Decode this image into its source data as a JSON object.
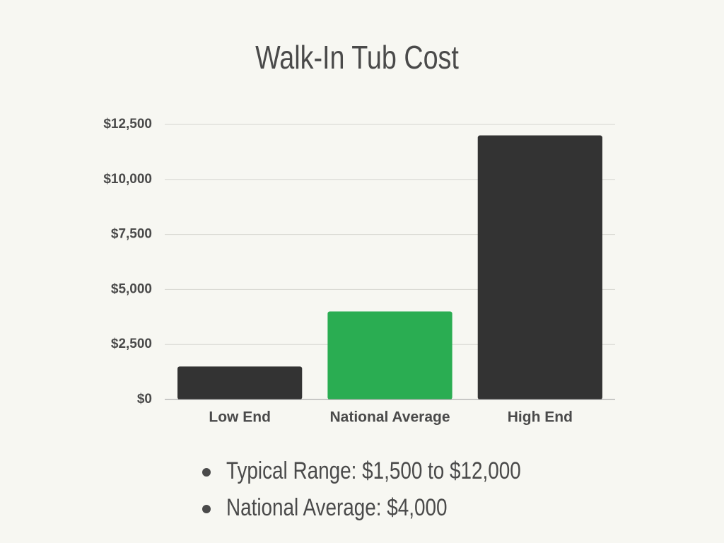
{
  "chart_data": {
    "type": "bar",
    "title": "Walk-In Tub Cost",
    "categories": [
      "Low End",
      "National Average",
      "High End"
    ],
    "values": [
      1500,
      4000,
      12000
    ],
    "colors": [
      "#333333",
      "#2aad52",
      "#333333"
    ],
    "ylim": [
      0,
      12500
    ],
    "yticks": [
      {
        "value": 0,
        "label": "$0"
      },
      {
        "value": 2500,
        "label": "$2,500"
      },
      {
        "value": 5000,
        "label": "$5,000"
      },
      {
        "value": 7500,
        "label": "$7,500"
      },
      {
        "value": 10000,
        "label": "$10,000"
      },
      {
        "value": 12500,
        "label": "$12,500"
      }
    ],
    "grid": true,
    "notes": [
      "Typical Range: $1,500 to $12,000",
      "National Average: $4,000"
    ]
  }
}
